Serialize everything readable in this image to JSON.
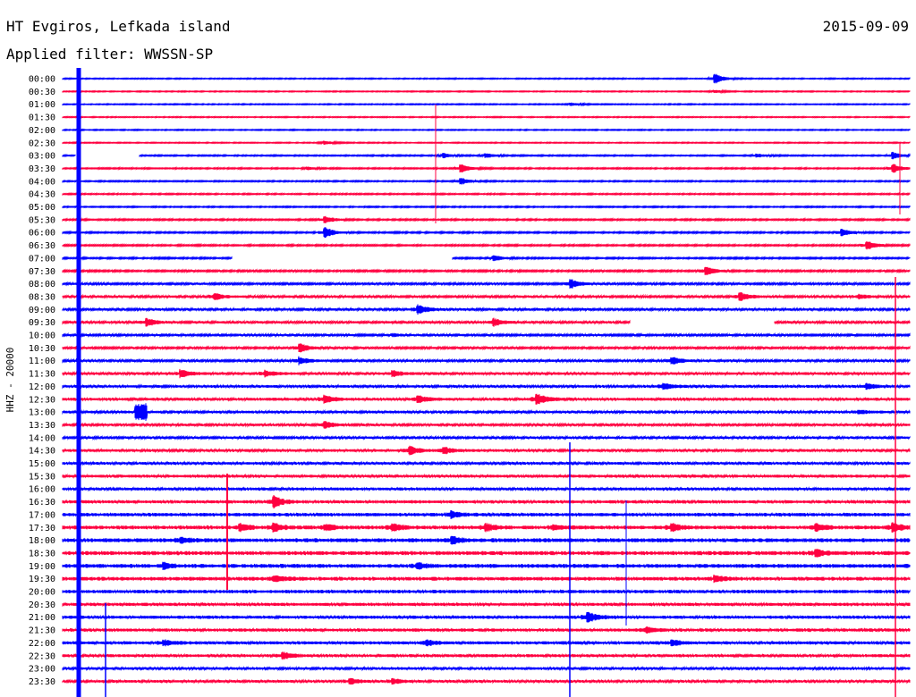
{
  "header": {
    "station": "HT Evgiros, Lefkada island",
    "date": "2015-09-09",
    "filter": "Applied filter: WWSSN-SP"
  },
  "chart_data": {
    "type": "line",
    "title": "HT Evgiros, Lefkada island",
    "date": "2015-09-09",
    "filter": "WWSSN-SP",
    "ylabel": "HHZ - 20000",
    "colors": [
      "#0000ff",
      "#ff0040"
    ],
    "rows": [
      "00:00",
      "00:30",
      "01:00",
      "01:30",
      "02:00",
      "02:30",
      "03:00",
      "03:30",
      "04:00",
      "04:30",
      "05:00",
      "05:30",
      "06:00",
      "06:30",
      "07:00",
      "07:30",
      "08:00",
      "08:30",
      "09:00",
      "09:30",
      "10:00",
      "10:30",
      "11:00",
      "11:30",
      "12:00",
      "12:30",
      "13:00",
      "13:30",
      "14:00",
      "14:30",
      "15:00",
      "15:30",
      "16:00",
      "16:30",
      "17:00",
      "17:30",
      "18:00",
      "18:30",
      "19:00",
      "19:30",
      "20:00",
      "20:30",
      "21:00",
      "21:30",
      "22:00",
      "22:30",
      "23:00",
      "23:30"
    ],
    "noise": [
      0.4,
      0.4,
      0.4,
      0.4,
      0.4,
      0.4,
      0.5,
      0.5,
      0.5,
      0.5,
      0.5,
      0.6,
      0.6,
      0.6,
      0.6,
      0.7,
      0.8,
      0.9,
      0.9,
      0.9,
      0.8,
      0.8,
      0.9,
      1,
      1,
      1.1,
      1,
      0.9,
      0.9,
      1,
      1,
      1.1,
      1.1,
      1.2,
      1.3,
      1.4,
      1.5,
      1.5,
      1.5,
      1.4,
      1.3,
      1.2,
      1.2,
      1.2,
      1.2,
      1.1,
      1,
      1
    ],
    "events": [
      [
        0,
        0.77,
        6
      ],
      [
        1,
        0.77,
        1.5
      ],
      [
        2,
        0.6,
        1.5
      ],
      [
        5,
        0.31,
        2
      ],
      [
        6,
        0.45,
        2.5
      ],
      [
        6,
        0.5,
        2.5
      ],
      [
        6,
        0.82,
        2
      ],
      [
        6,
        0.98,
        4
      ],
      [
        7,
        0.29,
        1.5
      ],
      [
        7,
        0.47,
        5
      ],
      [
        7,
        0.98,
        5
      ],
      [
        8,
        0.47,
        4
      ],
      [
        11,
        0.31,
        4
      ],
      [
        12,
        0.31,
        6
      ],
      [
        12,
        0.92,
        4
      ],
      [
        13,
        0.95,
        5
      ],
      [
        14,
        0.51,
        3
      ],
      [
        15,
        0.76,
        5
      ],
      [
        16,
        0.6,
        5
      ],
      [
        17,
        0.18,
        4
      ],
      [
        17,
        0.8,
        5
      ],
      [
        17,
        0.94,
        2
      ],
      [
        18,
        0.42,
        5
      ],
      [
        19,
        0.1,
        4
      ],
      [
        19,
        0.51,
        4
      ],
      [
        20,
        0.39,
        1.5
      ],
      [
        21,
        0.28,
        5
      ],
      [
        22,
        0.28,
        4
      ],
      [
        22,
        0.72,
        4
      ],
      [
        23,
        0.14,
        4
      ],
      [
        23,
        0.39,
        3
      ],
      [
        23,
        0.24,
        3
      ],
      [
        24,
        0.71,
        4
      ],
      [
        24,
        0.95,
        3
      ],
      [
        25,
        0.31,
        4
      ],
      [
        25,
        0.42,
        4
      ],
      [
        25,
        0.56,
        6
      ],
      [
        26,
        0.94,
        2
      ],
      [
        27,
        0.31,
        4
      ],
      [
        29,
        0.41,
        5
      ],
      [
        29,
        0.45,
        4
      ],
      [
        33,
        0.25,
        6
      ],
      [
        34,
        0.46,
        3
      ],
      [
        35,
        0.21,
        4
      ],
      [
        35,
        0.25,
        4
      ],
      [
        35,
        0.31,
        3
      ],
      [
        35,
        0.39,
        4
      ],
      [
        35,
        0.5,
        4
      ],
      [
        35,
        0.58,
        3
      ],
      [
        35,
        0.72,
        4
      ],
      [
        35,
        0.89,
        4
      ],
      [
        35,
        0.98,
        5
      ],
      [
        36,
        0.14,
        3
      ],
      [
        36,
        0.46,
        4
      ],
      [
        37,
        0.89,
        4
      ],
      [
        38,
        0.12,
        3
      ],
      [
        38,
        0.42,
        3
      ],
      [
        39,
        0.25,
        3
      ],
      [
        39,
        0.77,
        3
      ],
      [
        42,
        0.62,
        6
      ],
      [
        43,
        0.69,
        3
      ],
      [
        44,
        0.12,
        3
      ],
      [
        44,
        0.43,
        3
      ],
      [
        44,
        0.72,
        3
      ],
      [
        45,
        0.26,
        4
      ],
      [
        47,
        0.34,
        3
      ],
      [
        47,
        0.39,
        3
      ]
    ],
    "bands": [
      [
        26,
        0.085,
        0.1,
        9
      ]
    ],
    "gaps": [
      [
        6,
        0.015,
        0.09
      ],
      [
        14,
        0.2,
        0.46
      ],
      [
        19,
        0.67,
        0.84
      ]
    ]
  }
}
